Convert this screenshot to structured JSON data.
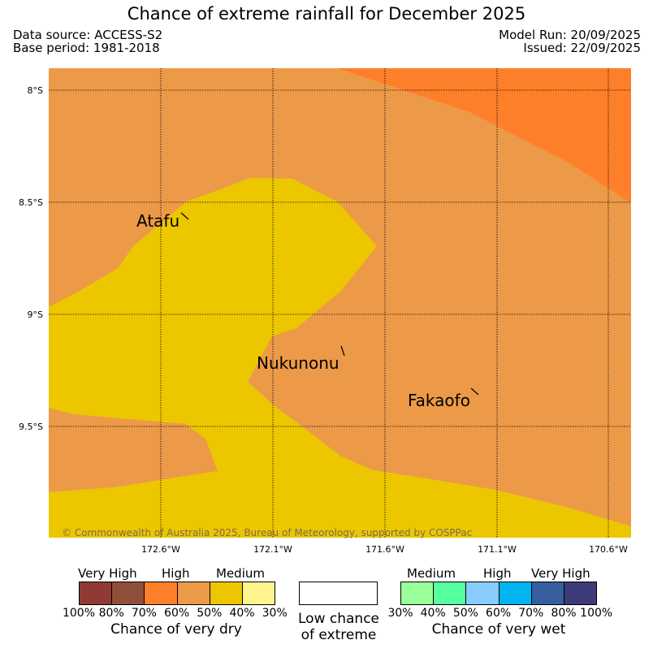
{
  "header": {
    "title": "Chance of extreme rainfall for December 2025",
    "data_source": "Data source: ACCESS-S2",
    "base_period": "Base period: 1981-2018",
    "model_run": "Model Run: 20/09/2025",
    "issued": "Issued: 22/09/2025"
  },
  "map": {
    "lat_labels": [
      "8°S",
      "8.5°S",
      "9°S",
      "9.5°S"
    ],
    "lon_labels": [
      "172.6°W",
      "172.1°W",
      "171.6°W",
      "171.1°W",
      "170.6°W"
    ],
    "places": [
      "Atafu",
      "Nukunonu",
      "Fakaofo"
    ],
    "copyright": "© Commonwealth of Australia 2025, Bureau of Meteorology, supported by COSPPac",
    "region_colors": {
      "high_dry": "#fe7f2a",
      "moderate_dry": "#ec9a48",
      "medium_dry": "#ecc700"
    }
  },
  "legend": {
    "dry": {
      "categories": [
        "Very High",
        "High",
        "Medium"
      ],
      "ticks": [
        "100%",
        "80%",
        "70%",
        "60%",
        "50%",
        "40%",
        "30%"
      ],
      "colors": [
        "#8f3a32",
        "#8f4f3b",
        "#fe7f2a",
        "#ec9a48",
        "#ecc700",
        "#fef48c"
      ],
      "caption": "Chance of very dry"
    },
    "low": {
      "line1": "Low chance",
      "line2": "of extreme"
    },
    "wet": {
      "categories": [
        "Medium",
        "High",
        "Very High"
      ],
      "ticks": [
        "30%",
        "40%",
        "50%",
        "60%",
        "70%",
        "80%",
        "100%"
      ],
      "colors": [
        "#99ff99",
        "#56ff9f",
        "#88ccfe",
        "#00b4f0",
        "#355f9f",
        "#3c3a78"
      ],
      "caption": "Chance of very wet"
    }
  }
}
